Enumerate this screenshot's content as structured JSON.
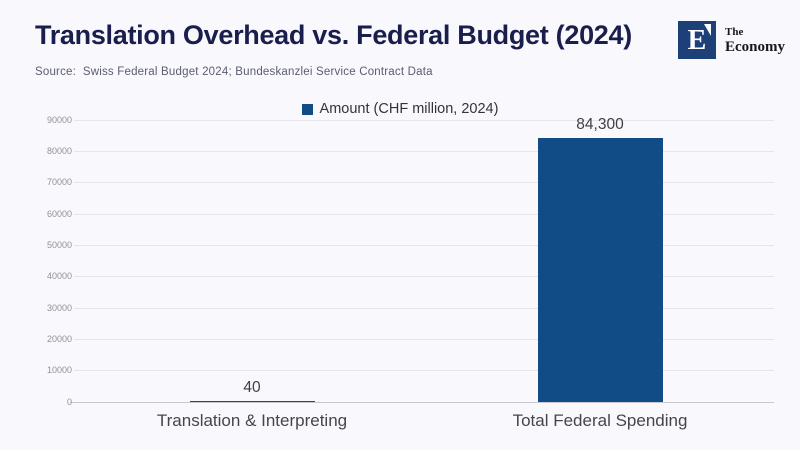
{
  "header": {
    "title": "Translation Overhead vs. Federal Budget (2024)",
    "source": "Source:  Swiss Federal Budget 2024; Bundeskanzlei Service Contract Data",
    "logo": {
      "monogram": "E",
      "name_line1": "The",
      "name_line2": "Economy"
    }
  },
  "colors": {
    "background": "#f8f8fd",
    "bar": "#114c87",
    "title_text": "#1a1e4c",
    "source_text": "#5a5d70",
    "gridline": "#e5e5ee",
    "axis_line": "#c8c8d2",
    "tick_label": "#90919b",
    "category_label": "#45464b",
    "value_label": "#3e3f45",
    "logo_navy": "#1d4078"
  },
  "chart_data": {
    "type": "bar",
    "title": "Translation Overhead vs. Federal Budget (2024)",
    "categories": [
      "Translation & Interpreting",
      "Total Federal Spending"
    ],
    "values": [
      40,
      84300
    ],
    "value_labels": [
      "40",
      "84,300"
    ],
    "legend": "Amount (CHF million, 2024)",
    "legend_position": "top",
    "xlabel": "",
    "ylabel": "",
    "ylim": [
      0,
      90000
    ],
    "ytick_step": 10000,
    "ytick_format": "plain",
    "grid": true
  }
}
